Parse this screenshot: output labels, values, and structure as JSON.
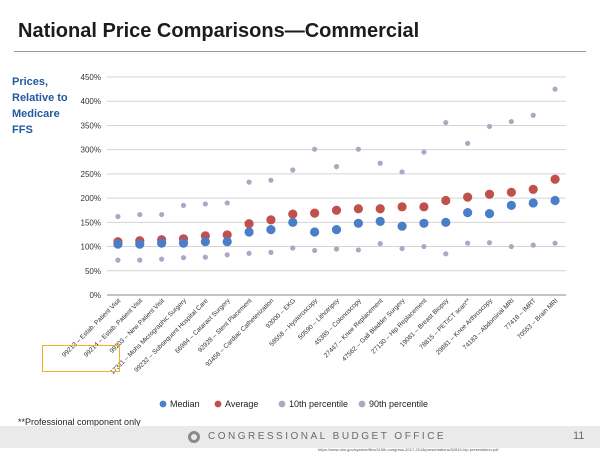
{
  "slide": {
    "title": "National Price Comparisons—Commercial",
    "y_caption_lines": [
      "Prices,",
      "Relative to",
      "Medicare FFS"
    ],
    "footnote": "**Professional component only",
    "footer_org": "CONGRESSIONAL BUDGET OFFICE",
    "page_number": "11",
    "source_url": "https://www.cbo.gov/system/files/115th-congress-2017-2018/presentations/52819-hlp-presentation.pdf"
  },
  "colors": {
    "median": "#4a7ec8",
    "average": "#c0504d",
    "p10": "#b0a6c2",
    "p90": "#b0a6c2",
    "title": "#1c1c1c",
    "caption": "#1f5a9e",
    "highlight": "#f0b020"
  },
  "chart_data": {
    "type": "scatter",
    "y_tick_labels": [
      "0%",
      "50%",
      "100%",
      "150%",
      "200%",
      "250%",
      "300%",
      "350%",
      "400%",
      "450%"
    ],
    "ylim": [
      0,
      450
    ],
    "legend_position": "bottom",
    "categories": [
      "99213 – Estab. Patient Visit",
      "99214 – Estab. Patient Visit",
      "99203 – New Patient Visit",
      "17311 – Mohs Micrographic Surgery",
      "99232 – Subsequent Hospital Care",
      "66984 – Cataract Surgery",
      "92928 – Stent Placement",
      "93458 – Cardiac Catheterization",
      "93000 – EKG",
      "58558 – Hysteroscopy",
      "50590 – Lithotripsy",
      "45385 – Colonoscopy",
      "27447 – Knee Replacement",
      "47562 – Gall Bladder Surgery",
      "27130 – Hip Replacement",
      "19081 – Breast Biopsy",
      "78815 – PET/CT scan**",
      "29881 – Knee Arthroscopy",
      "74183 – Abdominal MRI",
      "77418 – IMRT",
      "70553 – Brain MRI"
    ],
    "series": [
      {
        "name": "Median",
        "values": [
          105,
          105,
          107,
          107,
          110,
          110,
          130,
          135,
          150,
          130,
          135,
          148,
          152,
          142,
          148,
          150,
          170,
          168,
          185,
          190,
          195
        ]
      },
      {
        "name": "Average",
        "values": [
          110,
          112,
          114,
          116,
          122,
          124,
          147,
          155,
          167,
          169,
          175,
          178,
          178,
          182,
          182,
          195,
          202,
          208,
          212,
          218,
          239
        ]
      },
      {
        "name": "10th percentile",
        "values": [
          72,
          72,
          74,
          77,
          78,
          83,
          86,
          88,
          97,
          92,
          95,
          93,
          106,
          96,
          100,
          85,
          107,
          108,
          100,
          103,
          107
        ]
      },
      {
        "name": "90th percentile",
        "values": [
          162,
          166,
          166,
          185,
          188,
          190,
          233,
          237,
          258,
          301,
          265,
          301,
          272,
          254,
          295,
          356,
          313,
          348,
          358,
          371,
          425
        ]
      }
    ]
  }
}
